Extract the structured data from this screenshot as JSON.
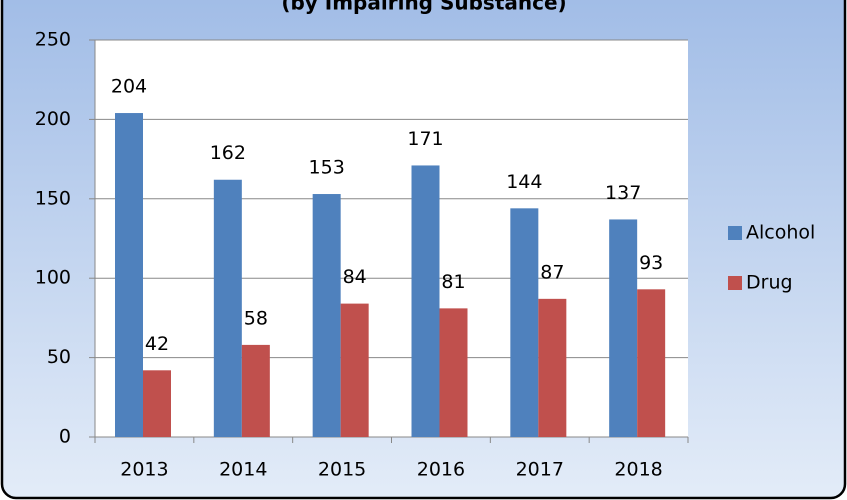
{
  "chart_data": {
    "type": "bar",
    "title": "(by Impairing Substance)",
    "categories": [
      "2013",
      "2014",
      "2015",
      "2016",
      "2017",
      "2018"
    ],
    "series": [
      {
        "name": "Alcohol",
        "color": "#4f81bd",
        "values": [
          204,
          162,
          153,
          171,
          144,
          137
        ]
      },
      {
        "name": "Drug",
        "color": "#c0504d",
        "values": [
          42,
          58,
          84,
          81,
          87,
          93
        ]
      }
    ],
    "ylim": [
      0,
      250
    ],
    "yticks": [
      0,
      50,
      100,
      150,
      200,
      250
    ],
    "grid": true,
    "legend": "right"
  }
}
